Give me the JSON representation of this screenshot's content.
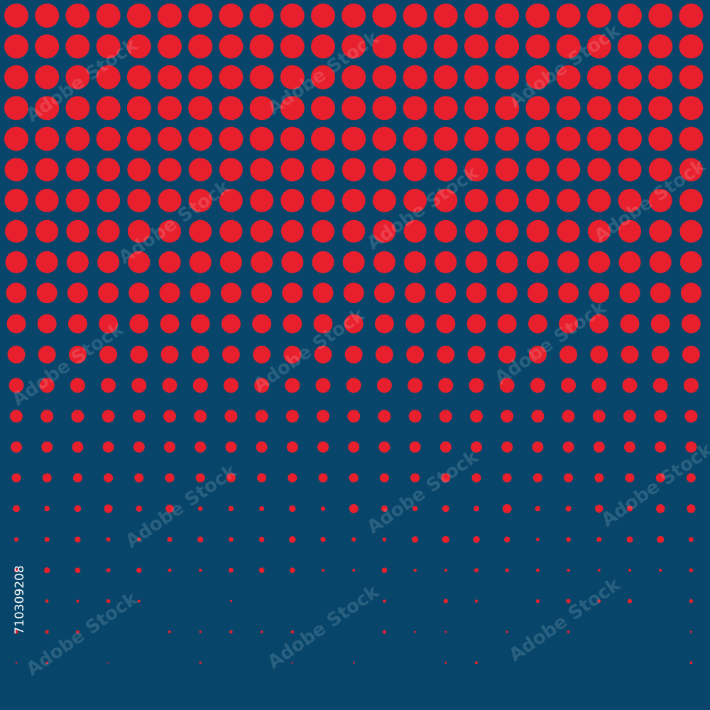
{
  "watermark": "Adobe Stock",
  "stock_id": "710309208"
}
